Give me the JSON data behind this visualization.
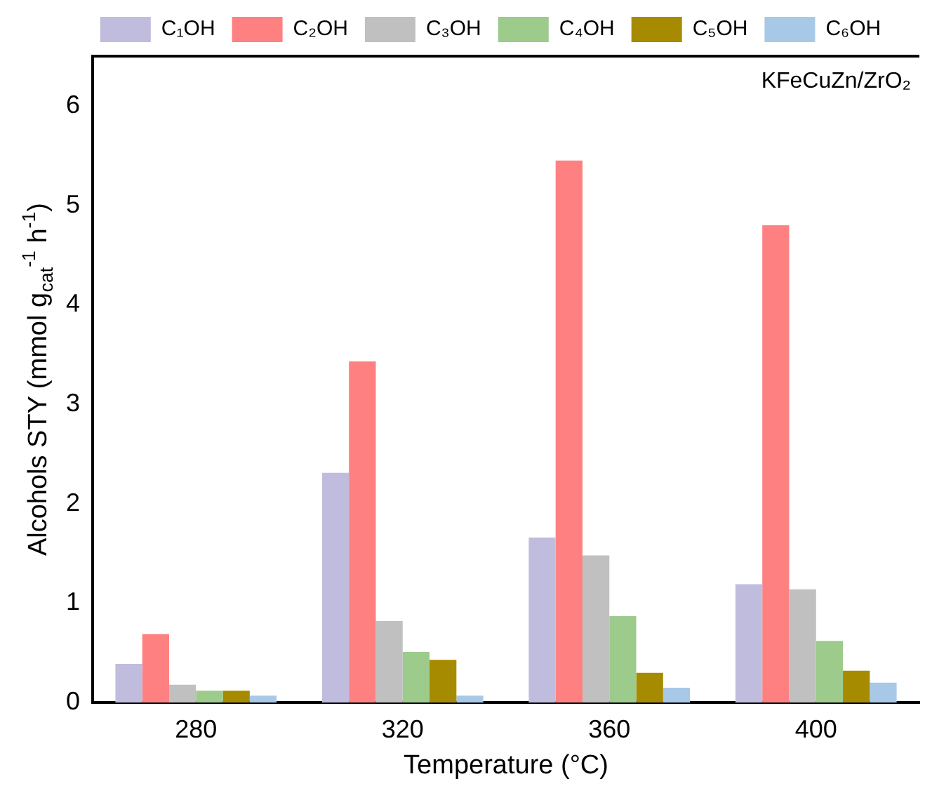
{
  "chart_data": {
    "type": "bar",
    "xlabel": "Temperature (°C)",
    "ylabel": "Alcohols STY (mmol g$_{cat}$$^{-1}$ h$^{-1}$)",
    "categories": [
      "280",
      "320",
      "360",
      "400"
    ],
    "series": [
      {
        "name": "C₁OH",
        "color": "#c0bcdd",
        "values": [
          0.39,
          2.31,
          1.66,
          1.19
        ]
      },
      {
        "name": "C₂OH",
        "color": "#ff8080",
        "values": [
          0.69,
          3.43,
          5.45,
          4.8
        ]
      },
      {
        "name": "C₃OH",
        "color": "#c0c0c0",
        "values": [
          0.18,
          0.82,
          1.48,
          1.14
        ]
      },
      {
        "name": "C₄OH",
        "color": "#9ccb8c",
        "values": [
          0.12,
          0.51,
          0.87,
          0.62
        ]
      },
      {
        "name": "C₅OH",
        "color": "#a68a00",
        "values": [
          0.12,
          0.43,
          0.3,
          0.32
        ]
      },
      {
        "name": "C₆OH",
        "color": "#a8c8e8",
        "values": [
          0.07,
          0.07,
          0.15,
          0.2
        ]
      }
    ],
    "ylim": [
      0,
      6.5
    ],
    "yticks": [
      0,
      1,
      2,
      3,
      4,
      5,
      6
    ],
    "annotations": [
      "KFeCuZn/ZrO₂"
    ],
    "legend": "top",
    "grid": false
  }
}
